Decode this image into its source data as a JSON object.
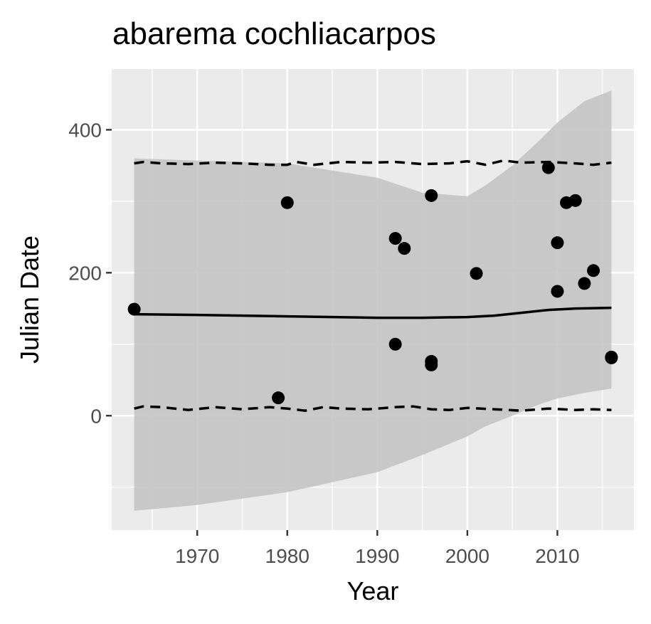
{
  "chart_data": {
    "type": "scatter",
    "title": "abarema cochliacarpos",
    "xlabel": "Year",
    "ylabel": "Julian Date",
    "xlim": [
      1960.5,
      2018.5
    ],
    "ylim": [
      -160,
      485
    ],
    "x_ticks": [
      1970,
      1980,
      1990,
      2000,
      2010
    ],
    "y_ticks": [
      0,
      200,
      400
    ],
    "grid": true,
    "legend": "none",
    "colors": {
      "panel": "#ebebeb",
      "grid": "#ffffff",
      "ribbon": "#c4c4c4",
      "points": "#000000",
      "lines": "#000000"
    },
    "points": [
      {
        "x": 1963,
        "y": 149
      },
      {
        "x": 1979,
        "y": 25
      },
      {
        "x": 1980,
        "y": 298
      },
      {
        "x": 1992,
        "y": 248
      },
      {
        "x": 1992,
        "y": 100
      },
      {
        "x": 1993,
        "y": 234
      },
      {
        "x": 1996,
        "y": 308
      },
      {
        "x": 1996,
        "y": 76
      },
      {
        "x": 1996,
        "y": 71
      },
      {
        "x": 2001,
        "y": 199
      },
      {
        "x": 2009,
        "y": 347
      },
      {
        "x": 2010,
        "y": 242
      },
      {
        "x": 2010,
        "y": 174
      },
      {
        "x": 2011,
        "y": 298
      },
      {
        "x": 2012,
        "y": 301
      },
      {
        "x": 2013,
        "y": 185
      },
      {
        "x": 2014,
        "y": 203
      },
      {
        "x": 2016,
        "y": 81
      },
      {
        "x": 2016,
        "y": 82
      }
    ],
    "fit_line": {
      "x": [
        1963,
        1970,
        1980,
        1990,
        1995,
        2000,
        2003,
        2006,
        2009,
        2012,
        2016
      ],
      "y": [
        142,
        141,
        139,
        137,
        137,
        138,
        140,
        144,
        148,
        150,
        151
      ]
    },
    "ribbon": {
      "x": [
        1963,
        1970,
        1980,
        1990,
        1995,
        2000,
        2002,
        2005,
        2008,
        2010,
        2013,
        2016
      ],
      "upper": [
        360,
        357,
        353,
        333,
        312,
        307,
        322,
        350,
        385,
        410,
        440,
        455
      ],
      "lower": [
        -133,
        -125,
        -107,
        -79,
        -55,
        -29,
        -15,
        0,
        16,
        24,
        32,
        38
      ]
    },
    "quantile_upper": {
      "x": [
        1963,
        1964,
        1966,
        1969,
        1972,
        1975,
        1978,
        1980,
        1981,
        1983,
        1986,
        1989,
        1992,
        1995,
        1998,
        2000,
        2002,
        2004,
        2006,
        2009,
        2012,
        2014,
        2016
      ],
      "y": [
        353,
        355,
        353,
        352,
        354,
        353,
        351,
        351,
        355,
        351,
        355,
        354,
        355,
        352,
        353,
        356,
        351,
        357,
        354,
        355,
        353,
        351,
        354
      ]
    },
    "quantile_lower": {
      "x": [
        1963,
        1964,
        1966,
        1969,
        1972,
        1975,
        1978,
        1980,
        1982,
        1984,
        1986,
        1989,
        1992,
        1994,
        1996,
        1998,
        2000,
        2003,
        2006,
        2009,
        2012,
        2014,
        2016
      ],
      "y": [
        10,
        13,
        12,
        8,
        12,
        9,
        12,
        10,
        7,
        12,
        10,
        9,
        12,
        13,
        9,
        8,
        11,
        9,
        7,
        10,
        8,
        9,
        8
      ]
    }
  }
}
